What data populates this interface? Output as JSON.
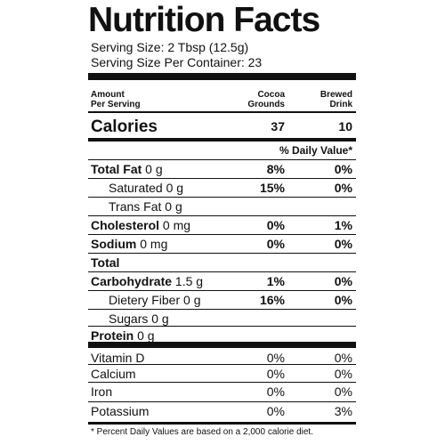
{
  "label": {
    "title": "Nutrition Facts",
    "serving_size": "Serving Size: 2 Tbsp (12.5g)",
    "servings_per_container": "Serving Size Per Container: 23",
    "header": {
      "amount_line1": "Amount",
      "amount_line2": "Per Serving",
      "col1_line1": "Cocoa",
      "col1_line2": "Grounds",
      "col2_line1": "Brewed",
      "col2_line2": "Drink"
    },
    "calories": {
      "label": "Calories",
      "col1": "37",
      "col2": "10"
    },
    "daily_value_header": "% Daily Value*",
    "nutrients": [
      {
        "name": "Total Fat",
        "amount": " 0 g",
        "col1": "8%",
        "col2": "0%"
      },
      {
        "name": "Saturated 0 g",
        "amount": "",
        "col1": "15%",
        "col2": "0%"
      },
      {
        "name": "Trans Fat 0 g",
        "amount": "",
        "col1": "",
        "col2": ""
      },
      {
        "name": "Cholesterol",
        "amount": " 0 mg",
        "col1": "0%",
        "col2": "1%"
      },
      {
        "name": "Sodium",
        "amount": " 0 mg",
        "col1": "0%",
        "col2": "0%"
      },
      {
        "name": "Total",
        "amount": "",
        "col1": "",
        "col2": ""
      },
      {
        "name": "Carbohydrate",
        "amount": " 1.5 g",
        "col1": "1%",
        "col2": "0%"
      },
      {
        "name": "Dietery Fiber 0 g",
        "amount": "",
        "col1": "16%",
        "col2": "0%"
      },
      {
        "name": "Sugars 0 g",
        "amount": "",
        "col1": "",
        "col2": ""
      },
      {
        "name": "Protein",
        "amount": " 0 g",
        "col1": "",
        "col2": ""
      }
    ],
    "vitamins": [
      {
        "name": "Vitamin D",
        "col1": "0%",
        "col2": "0%"
      },
      {
        "name": "Calcium",
        "col1": "0%",
        "col2": "0%"
      },
      {
        "name": "Iron",
        "col1": "0%",
        "col2": "0%"
      },
      {
        "name": "Potassium",
        "col1": "0%",
        "col2": "3%"
      }
    ],
    "footnote": "* Percent Daily Values are based on a 2,000 calorie diet."
  }
}
